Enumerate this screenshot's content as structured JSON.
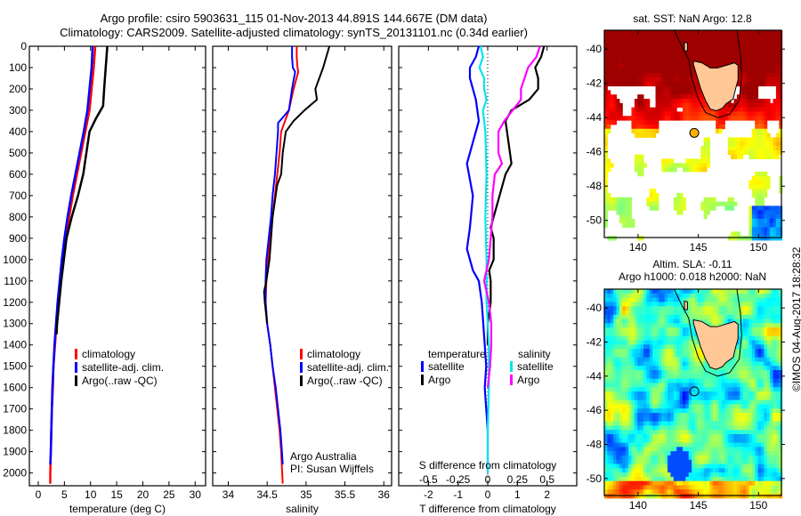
{
  "header": {
    "title_line1": "Argo profile: csiro 5903631_115 01-Nov-2013 44.891S 144.667E (DM data)",
    "title_line2": "Climatology: CARS2009. Satellite-adjusted climatology: synTS_20131101.nc (0.34d earlier)"
  },
  "colors": {
    "climatology": "#ff0000",
    "satellite": "#0000ff",
    "argo": "#000000",
    "salinity_satellite": "#00e5ee",
    "salinity_argo": "#ff00ff",
    "land": "#ffc896"
  },
  "chart_data": [
    {
      "type": "line",
      "name": "temperature-profile",
      "xlabel": "temperature (deg C)",
      "ylabel": "",
      "xlim": [
        -1.7,
        32
      ],
      "ylim": [
        2060,
        0
      ],
      "xticks": [
        0,
        5,
        10,
        15,
        20,
        25,
        30
      ],
      "yticks": [
        0,
        100,
        200,
        300,
        400,
        500,
        600,
        700,
        800,
        900,
        1000,
        1100,
        1200,
        1300,
        1400,
        1500,
        1600,
        1700,
        1800,
        1900,
        2000
      ],
      "legend": [
        "climatology",
        "satellite-adj. clim.",
        "Argo(..raw -QC)"
      ],
      "series": [
        {
          "name": "climatology",
          "color_key": "climatology",
          "depth": [
            0,
            100,
            200,
            300,
            400,
            500,
            600,
            700,
            800,
            900,
            1000,
            1100,
            1200,
            1300,
            1400,
            1500,
            1600,
            1700,
            1800,
            1900,
            2000,
            2050
          ],
          "values": [
            10.9,
            10.6,
            10.2,
            9.8,
            9.0,
            8.2,
            7.4,
            6.6,
            5.9,
            5.3,
            4.7,
            4.2,
            3.8,
            3.5,
            3.2,
            2.9,
            2.8,
            2.6,
            2.5,
            2.4,
            2.3,
            2.3
          ]
        },
        {
          "name": "satellite-adj. clim.",
          "color_key": "satellite",
          "depth": [
            0,
            100,
            200,
            300,
            400,
            500,
            600,
            700,
            800,
            900,
            1000,
            1100,
            1200,
            1300,
            1400,
            1500,
            1600,
            1700,
            1800,
            1900,
            1960
          ],
          "values": [
            10.4,
            10.2,
            9.8,
            9.4,
            8.7,
            7.9,
            7.1,
            6.3,
            5.6,
            5.0,
            4.5,
            4.1,
            3.7,
            3.4,
            3.1,
            2.9,
            2.7,
            2.6,
            2.5,
            2.4,
            2.3
          ]
        },
        {
          "name": "Argo(..raw -QC)",
          "color_key": "argo",
          "depth": [
            0,
            100,
            200,
            280,
            340,
            400,
            500,
            600,
            700,
            800,
            900,
            1000,
            1100,
            1200,
            1300,
            1350
          ],
          "values": [
            13.2,
            12.9,
            12.6,
            12.4,
            11.0,
            9.8,
            9.2,
            8.6,
            7.6,
            6.4,
            5.4,
            4.9,
            4.4,
            4.0,
            3.6,
            3.5
          ]
        }
      ]
    },
    {
      "type": "line",
      "name": "salinity-profile",
      "xlabel": "salinity",
      "ylabel": "",
      "xlim": [
        33.8,
        36.1
      ],
      "ylim": [
        2060,
        0
      ],
      "xticks": [
        34,
        34.5,
        35,
        35.5,
        36
      ],
      "legend": [
        "climatology",
        "satellite-adj. clim.",
        "Argo(..raw -QC)"
      ],
      "annotation": [
        "Argo Australia",
        "PI: Susan Wijffels"
      ],
      "series": [
        {
          "name": "climatology",
          "color_key": "climatology",
          "depth": [
            0,
            50,
            100,
            120,
            200,
            300,
            400,
            500,
            600,
            700,
            800,
            900,
            1000,
            1100,
            1200,
            1300,
            1400,
            1500,
            1600,
            1700,
            1800,
            1900,
            2050
          ],
          "values": [
            34.88,
            34.88,
            34.89,
            34.9,
            34.84,
            34.78,
            34.68,
            34.66,
            34.63,
            34.6,
            34.57,
            34.54,
            34.51,
            34.49,
            34.48,
            34.5,
            34.54,
            34.57,
            34.6,
            34.63,
            34.66,
            34.68,
            34.7
          ]
        },
        {
          "name": "satellite-adj. clim.",
          "color_key": "satellite",
          "depth": [
            0,
            50,
            100,
            120,
            200,
            300,
            360,
            400,
            500,
            600,
            700,
            800,
            900,
            1000,
            1100,
            1200,
            1300,
            1400,
            1500,
            1600,
            1700,
            1800,
            1900,
            1960
          ],
          "values": [
            34.82,
            34.82,
            34.83,
            34.86,
            34.82,
            34.78,
            34.64,
            34.64,
            34.62,
            34.6,
            34.57,
            34.55,
            34.52,
            34.49,
            34.48,
            34.48,
            34.5,
            34.54,
            34.57,
            34.61,
            34.64,
            34.67,
            34.69,
            34.7
          ]
        },
        {
          "name": "Argo(..raw -QC)",
          "color_key": "argo",
          "depth": [
            0,
            100,
            200,
            250,
            300,
            350,
            400,
            500,
            600,
            650,
            700,
            800,
            900,
            1000,
            1100,
            1150,
            1200,
            1300
          ],
          "values": [
            35.3,
            35.22,
            35.12,
            35.14,
            34.98,
            34.84,
            34.74,
            34.7,
            34.68,
            34.63,
            34.61,
            34.57,
            34.55,
            34.53,
            34.49,
            34.46,
            34.47,
            34.5
          ]
        }
      ]
    },
    {
      "type": "line",
      "name": "difference-profile",
      "xlabel": "T difference from climatology",
      "x2label": "S difference from climatology",
      "xlim": [
        -3,
        3
      ],
      "xticks": [
        -2,
        -1,
        0,
        1,
        2
      ],
      "x2ticks": [
        -0.5,
        -0.25,
        0,
        0.25,
        0.5
      ],
      "x2_scale": 0.25,
      "ylim": [
        2060,
        0
      ],
      "legend_temperature": {
        "title": "temperature",
        "items": [
          "satellite",
          "Argo"
        ]
      },
      "legend_salinity": {
        "title": "salinity",
        "items": [
          "satellite",
          "Argo"
        ]
      },
      "series": [
        {
          "name": "temperature satellite",
          "color_key": "satellite",
          "depth": [
            0,
            50,
            100,
            150,
            250,
            350,
            450,
            550,
            700,
            850,
            950,
            1050,
            1100,
            1200,
            1300,
            1400,
            1500,
            1600,
            1700,
            1800,
            1900,
            2000
          ],
          "values": [
            -0.3,
            -0.4,
            -0.6,
            -0.6,
            -0.4,
            -0.3,
            -0.5,
            -0.7,
            -0.5,
            -0.6,
            -0.7,
            -0.5,
            -0.3,
            -0.2,
            -0.15,
            -0.1,
            -0.05,
            -0.1,
            -0.05,
            0,
            0,
            0
          ]
        },
        {
          "name": "temperature Argo",
          "color_key": "argo",
          "depth": [
            0,
            50,
            100,
            150,
            200,
            250,
            300,
            350,
            450,
            550,
            600,
            700,
            850,
            900,
            950,
            1000,
            1050,
            1100,
            1200,
            1300,
            1400
          ],
          "values": [
            1.9,
            1.8,
            1.6,
            1.7,
            1.7,
            1.4,
            0.8,
            0.6,
            0.7,
            0.8,
            0.6,
            0.4,
            0.1,
            0.2,
            0.2,
            0.2,
            0.05,
            0.1,
            0.1,
            0,
            0
          ]
        },
        {
          "name": "salinity satellite",
          "color_key": "salinity_satellite",
          "depth": [
            0,
            50,
            100,
            150,
            200,
            250,
            300,
            400,
            600,
            800,
            1000,
            1200,
            1400,
            1600,
            1800,
            2000
          ],
          "values": [
            -0.06,
            -0.04,
            -0.07,
            -0.03,
            -0.03,
            -0.01,
            -0.04,
            -0.02,
            -0.01,
            -0.02,
            -0.01,
            -0.01,
            0.01,
            0.01,
            0,
            0
          ]
        },
        {
          "name": "salinity Argo",
          "color_key": "salinity_argo",
          "depth": [
            0,
            50,
            100,
            150,
            200,
            250,
            300,
            350,
            400,
            500,
            550,
            600,
            700,
            800,
            1000,
            1100,
            1150,
            1200,
            1300,
            1400,
            1500,
            1600
          ],
          "values": [
            0.44,
            0.41,
            0.34,
            0.31,
            0.28,
            0.28,
            0.21,
            0.14,
            0.09,
            0.09,
            0.12,
            0.06,
            0.04,
            0.04,
            0.01,
            -0.03,
            -0.01,
            0.01,
            0.03,
            0.03,
            0.02,
            0
          ]
        }
      ]
    },
    {
      "type": "heatmap",
      "name": "sst-map",
      "title": "sat. SST: NaN Argo: 12.8",
      "xticks": [
        140,
        145,
        150
      ],
      "yticks": [
        -40,
        -42,
        -44,
        -46,
        -48,
        -50
      ],
      "xlim": [
        137.2,
        151.9
      ],
      "ylim": [
        -51.0,
        -38.9
      ],
      "argo_position": [
        144.667,
        -44.891
      ],
      "argo_marker_value": 12.8
    },
    {
      "type": "heatmap",
      "name": "sla-map",
      "title_line1": "Altim. SLA: -0.11",
      "title_line2": "Argo h1000: 0.018 h2000: NaN",
      "xticks": [
        140,
        145,
        150
      ],
      "yticks": [
        -40,
        -42,
        -44,
        -46,
        -48,
        -50
      ],
      "xlim": [
        137.2,
        151.9
      ],
      "ylim": [
        -51.0,
        -38.9
      ],
      "argo_position": [
        144.667,
        -44.891
      ]
    }
  ],
  "footer": {
    "stamp": "©IMOS 04-Aug-2017 18:28:32"
  }
}
